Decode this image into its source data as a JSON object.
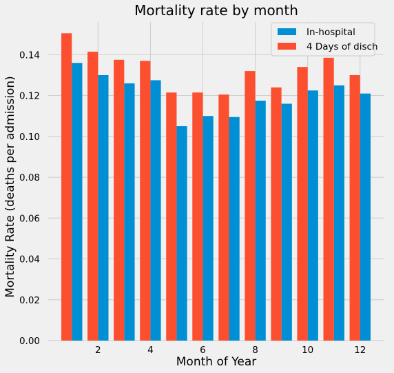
{
  "chart_data": {
    "type": "bar",
    "title": "Mortality rate by month",
    "xlabel": "Month of Year",
    "ylabel": "Mortality Rate (deaths per admission)",
    "x": [
      1,
      2,
      3,
      4,
      5,
      6,
      7,
      8,
      9,
      10,
      11,
      12
    ],
    "xticks": [
      2,
      4,
      6,
      8,
      10,
      12
    ],
    "xlim": [
      0.1,
      12.9
    ],
    "ylim": [
      0,
      0.156
    ],
    "yticks": [
      0.0,
      0.02,
      0.04,
      0.06,
      0.08,
      0.1,
      0.12,
      0.14
    ],
    "ytick_labels": [
      "0.00",
      "0.02",
      "0.04",
      "0.06",
      "0.08",
      "0.10",
      "0.12",
      "0.14"
    ],
    "grid": true,
    "legend_position": "top-right",
    "series": [
      {
        "name": "In-hospital",
        "color": "#008fd5",
        "values": [
          0.136,
          0.13,
          0.126,
          0.1275,
          0.105,
          0.11,
          0.1095,
          0.1175,
          0.116,
          0.1225,
          0.125,
          0.121
        ]
      },
      {
        "name": "4 Days of disch",
        "color": "#fc4f30",
        "values": [
          0.1505,
          0.1415,
          0.1375,
          0.137,
          0.1215,
          0.1215,
          0.1205,
          0.132,
          0.124,
          0.134,
          0.1385,
          0.13
        ]
      }
    ]
  }
}
